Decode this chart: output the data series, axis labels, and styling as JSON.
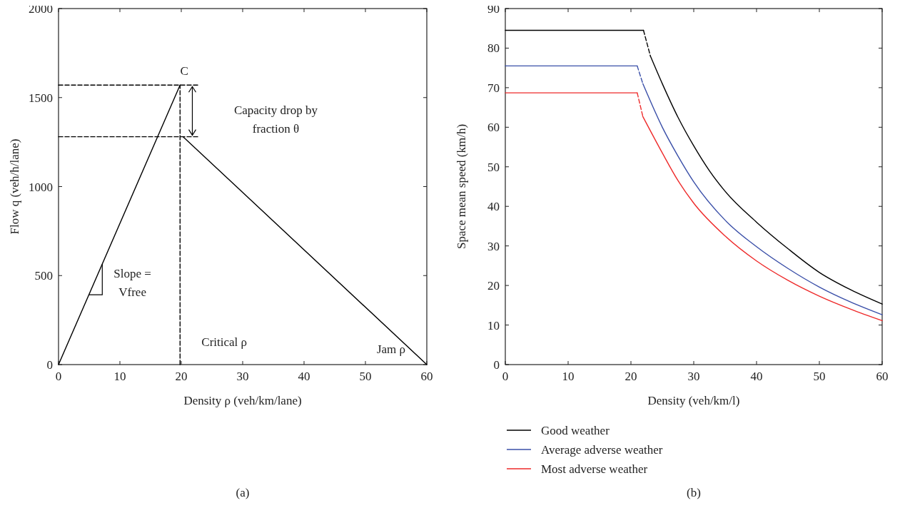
{
  "chart_data": [
    {
      "type": "line",
      "xlabel": "Density ρ (veh/km/lane)",
      "ylabel": "Flow q (veh/h/lane)",
      "xlim": [
        0,
        60
      ],
      "ylim": [
        0,
        2000
      ],
      "xticks": [
        0,
        10,
        20,
        30,
        40,
        50,
        60
      ],
      "yticks": [
        0,
        500,
        1000,
        1500,
        2000
      ],
      "series": [
        {
          "x": [
            0,
            19.8
          ],
          "values": [
            0,
            1570
          ],
          "color": "#000000",
          "line_style": "solid"
        },
        {
          "x": [
            20.3,
            60
          ],
          "values": [
            1280,
            0
          ],
          "color": "#000000",
          "line_style": "solid"
        },
        {
          "x": [
            0,
            23
          ],
          "values": [
            1570,
            1570
          ],
          "color": "#000000",
          "line_style": "dashed"
        },
        {
          "x": [
            0,
            23
          ],
          "values": [
            1280,
            1280
          ],
          "color": "#000000",
          "line_style": "dashed"
        },
        {
          "x": [
            19.8,
            19.8
          ],
          "values": [
            0,
            1570
          ],
          "color": "#000000",
          "line_style": "dashed"
        }
      ],
      "annotations": [
        {
          "text": "C",
          "x": 19.8,
          "y": 1570
        },
        "Capacity drop by\nfraction θ",
        {
          "text": "Slope =\nVfree",
          "x": 6,
          "y": 476
        },
        "Critical ρ",
        "Jam ρ",
        "(a)"
      ]
    },
    {
      "type": "line",
      "xlabel": "Density (veh/km/l)",
      "ylabel": "Space mean speed (km/h)",
      "xlim": [
        0,
        60
      ],
      "ylim": [
        0,
        90
      ],
      "xticks": [
        0,
        10,
        20,
        30,
        40,
        50,
        60
      ],
      "yticks": [
        0,
        10,
        20,
        30,
        40,
        50,
        60,
        70,
        80,
        90
      ],
      "legend": "bottom",
      "series": [
        {
          "name": "Good weather",
          "color": "#000000",
          "line_style": "solid",
          "x": [
            0,
            22
          ],
          "values": [
            84.5,
            84.5
          ]
        },
        {
          "name": "Average adverse weather",
          "color": "#3a4fa8",
          "line_style": "solid",
          "x": [
            0,
            21
          ],
          "values": [
            75.5,
            75.5
          ]
        },
        {
          "name": "Most adverse weather",
          "color": "#ee2a2a",
          "line_style": "solid",
          "x": [
            0,
            21
          ],
          "values": [
            68.7,
            68.7
          ]
        },
        {
          "color": "#000000",
          "line_style": "solid",
          "x": [
            23.1,
            25,
            27.5,
            30,
            32.5,
            35,
            40,
            45,
            50,
            55,
            60
          ],
          "values": [
            78,
            71,
            62.5,
            55.3,
            49,
            43.8,
            36,
            29.3,
            23.3,
            18.9,
            15.3
          ]
        },
        {
          "color": "#3a4fa8",
          "line_style": "solid",
          "x": [
            21.9,
            25,
            27.5,
            30,
            35,
            40,
            45,
            50,
            55,
            60
          ],
          "values": [
            71,
            60,
            52.7,
            46.2,
            36.5,
            29.8,
            24.3,
            19.6,
            15.8,
            12.6
          ]
        },
        {
          "color": "#ee2a2a",
          "line_style": "solid",
          "x": [
            21.9,
            25,
            27.5,
            30,
            35,
            40,
            45,
            50,
            55,
            60
          ],
          "values": [
            62.7,
            53.5,
            46.5,
            40.8,
            32.5,
            26.2,
            21.3,
            17.3,
            14,
            11.1
          ]
        },
        {
          "color": "#000000",
          "line_style": "dashed",
          "x": [
            22,
            23.1
          ],
          "values": [
            84.5,
            78
          ]
        },
        {
          "color": "#3a4fa8",
          "line_style": "dashed",
          "x": [
            21,
            21.9
          ],
          "values": [
            75.5,
            71
          ]
        },
        {
          "color": "#ee2a2a",
          "line_style": "dashed",
          "x": [
            21,
            21.9
          ],
          "values": [
            68.7,
            62.7
          ]
        }
      ],
      "annotations": [
        "(b)"
      ]
    }
  ]
}
